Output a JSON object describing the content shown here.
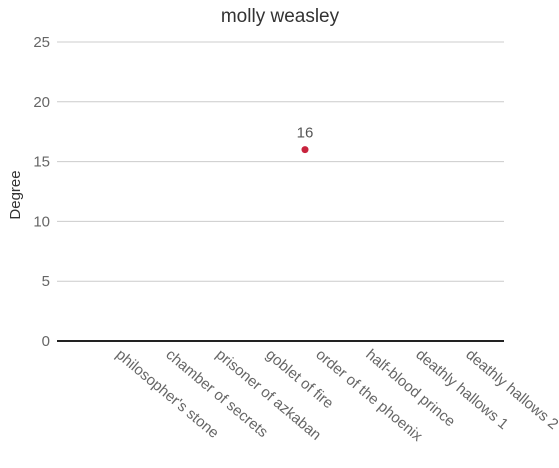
{
  "chart_data": {
    "type": "scatter",
    "title": "molly weasley",
    "xlabel": "",
    "ylabel": "Degree",
    "ylim": [
      0,
      25
    ],
    "yticks": [
      0,
      5,
      10,
      15,
      20,
      25
    ],
    "categories": [
      "philosopher's stone",
      "chamber of secrets",
      "prisoner of azkaban",
      "goblet of fire",
      "order of the phoenix",
      "half-blood prince",
      "deathly hallows 1",
      "deathly hallows 2"
    ],
    "series": [
      {
        "values": [
          null,
          null,
          null,
          null,
          16,
          null,
          null,
          null
        ],
        "color": "#c8233d"
      }
    ],
    "data_labels": true,
    "grid": true,
    "legend": "none"
  }
}
